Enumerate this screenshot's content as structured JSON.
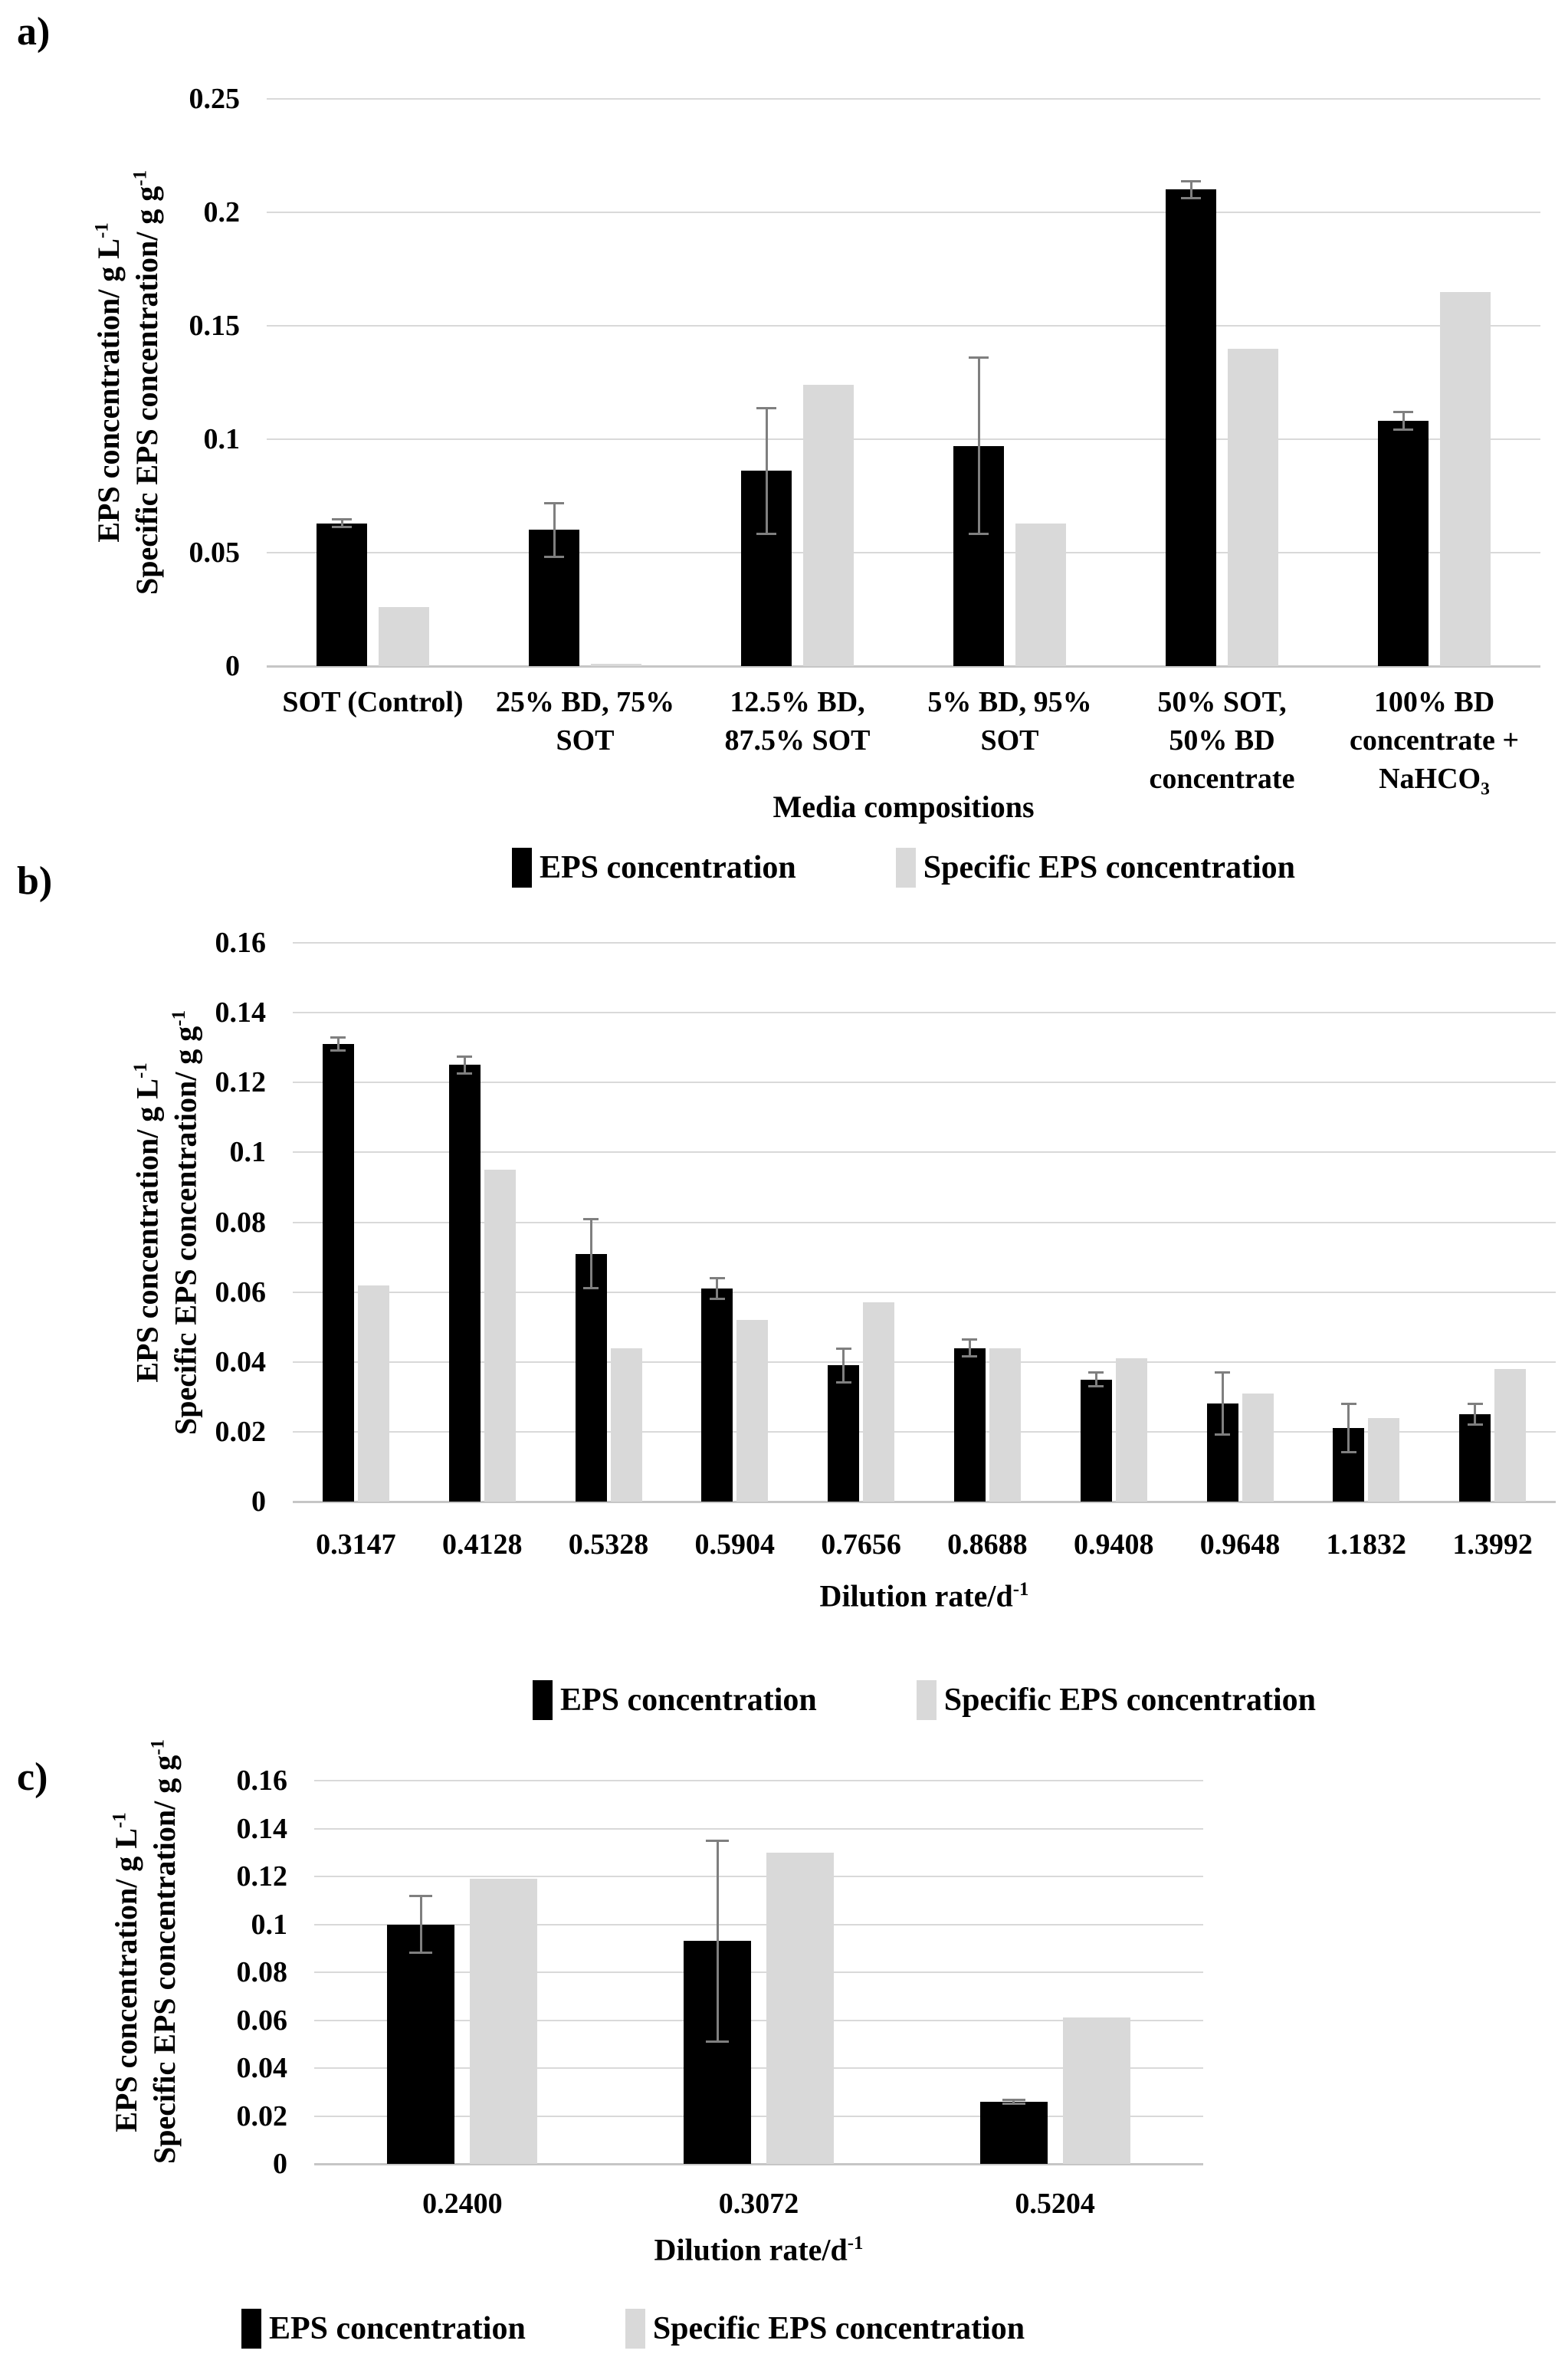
{
  "page_background": "#ffffff",
  "panel_labels": [
    "a)",
    "b)",
    "c)"
  ],
  "colors": {
    "eps_bar": "#000000",
    "specific_bar": "#d9d9d9",
    "gridline": "#d9d9d9",
    "axis_line": "#c6c6c6",
    "error_bar": "#7f7f7f",
    "text": "#000000"
  },
  "legend_items": [
    {
      "label": "EPS concentration",
      "color_key": "eps_bar"
    },
    {
      "label": "Specific EPS concentration",
      "color_key": "specific_bar"
    }
  ],
  "chart_data": [
    {
      "panel": "a",
      "type": "bar",
      "title": "",
      "xlabel": "Media compositions",
      "ylabel_lines": [
        "EPS concentration/ g L^-1",
        "Specific EPS concentration/ g g^-1"
      ],
      "ylim": [
        0,
        0.25
      ],
      "yticks": [
        {
          "value": 0.25,
          "label": "0.25"
        },
        {
          "value": 0.2,
          "label": "0.2"
        },
        {
          "value": 0.15,
          "label": "0.15"
        },
        {
          "value": 0.1,
          "label": "0.1"
        },
        {
          "value": 0.05,
          "label": "0.05"
        },
        {
          "value": 0,
          "label": "0"
        }
      ],
      "grid": true,
      "legend_position": "bottom-center",
      "categories": [
        "SOT (Control)",
        "25% BD, 75% SOT",
        "12.5% BD, 87.5% SOT",
        "5% BD, 95% SOT",
        "50% SOT, 50% BD concentrate",
        "100% BD concentrate + NaHCO_3"
      ],
      "category_lines": [
        [
          "SOT (Control)"
        ],
        [
          "25% BD, 75%",
          "SOT"
        ],
        [
          "12.5% BD,",
          "87.5% SOT"
        ],
        [
          "5% BD, 95%",
          "SOT"
        ],
        [
          "50% SOT,",
          "50% BD",
          "concentrate"
        ],
        [
          "100% BD",
          "concentrate +",
          "NaHCO_3"
        ]
      ],
      "series": [
        {
          "name": "EPS concentration",
          "values": [
            0.063,
            0.06,
            0.086,
            0.097,
            0.21,
            0.108
          ],
          "errors": [
            0.002,
            0.012,
            0.028,
            0.039,
            0.004,
            0.004
          ]
        },
        {
          "name": "Specific EPS concentration",
          "values": [
            0.026,
            0.001,
            0.124,
            0.063,
            0.14,
            0.165
          ],
          "errors": [
            0,
            0,
            0,
            0,
            0,
            0
          ]
        }
      ]
    },
    {
      "panel": "b",
      "type": "bar",
      "title": "",
      "xlabel": "Dilution rate/d^-1",
      "ylabel_lines": [
        "EPS concentration/ g L^-1",
        "Specific EPS concentration/ g g^-1"
      ],
      "ylim": [
        0,
        0.16
      ],
      "yticks": [
        {
          "value": 0.16,
          "label": "0.16"
        },
        {
          "value": 0.14,
          "label": "0.14"
        },
        {
          "value": 0.12,
          "label": "0.12"
        },
        {
          "value": 0.1,
          "label": "0.1"
        },
        {
          "value": 0.08,
          "label": "0.08"
        },
        {
          "value": 0.06,
          "label": "0.06"
        },
        {
          "value": 0.04,
          "label": "0.04"
        },
        {
          "value": 0.02,
          "label": "0.02"
        },
        {
          "value": 0,
          "label": "0"
        }
      ],
      "grid": true,
      "legend_position": "bottom-center",
      "categories": [
        "0.3147",
        "0.4128",
        "0.5328",
        "0.5904",
        "0.7656",
        "0.8688",
        "0.9408",
        "0.9648",
        "1.1832",
        "1.3992"
      ],
      "category_lines": [
        [
          "0.3147"
        ],
        [
          "0.4128"
        ],
        [
          "0.5328"
        ],
        [
          "0.5904"
        ],
        [
          "0.7656"
        ],
        [
          "0.8688"
        ],
        [
          "0.9408"
        ],
        [
          "0.9648"
        ],
        [
          "1.1832"
        ],
        [
          "1.3992"
        ]
      ],
      "series": [
        {
          "name": "EPS concentration",
          "values": [
            0.131,
            0.125,
            0.071,
            0.061,
            0.039,
            0.044,
            0.035,
            0.028,
            0.021,
            0.025
          ],
          "errors": [
            0.002,
            0.0025,
            0.01,
            0.003,
            0.005,
            0.0025,
            0.002,
            0.009,
            0.007,
            0.003
          ]
        },
        {
          "name": "Specific EPS concentration",
          "values": [
            0.062,
            0.095,
            0.044,
            0.052,
            0.057,
            0.044,
            0.041,
            0.031,
            0.024,
            0.038
          ],
          "errors": [
            0,
            0,
            0,
            0,
            0,
            0,
            0,
            0,
            0,
            0
          ]
        }
      ]
    },
    {
      "panel": "c",
      "type": "bar",
      "title": "",
      "xlabel": "Dilution rate/d^-1",
      "ylabel_lines": [
        "EPS concentration/ g L^-1",
        "Specific EPS concentration/ g g^-1"
      ],
      "ylim": [
        0,
        0.16
      ],
      "yticks": [
        {
          "value": 0.16,
          "label": "0.16"
        },
        {
          "value": 0.14,
          "label": "0.14"
        },
        {
          "value": 0.12,
          "label": "0.12"
        },
        {
          "value": 0.1,
          "label": "0.1"
        },
        {
          "value": 0.08,
          "label": "0.08"
        },
        {
          "value": 0.06,
          "label": "0.06"
        },
        {
          "value": 0.04,
          "label": "0.04"
        },
        {
          "value": 0.02,
          "label": "0.02"
        },
        {
          "value": 0,
          "label": "0"
        }
      ],
      "grid": true,
      "legend_position": "bottom-left",
      "categories": [
        "0.2400",
        "0.3072",
        "0.5204"
      ],
      "category_lines": [
        [
          "0.2400"
        ],
        [
          "0.3072"
        ],
        [
          "0.5204"
        ]
      ],
      "series": [
        {
          "name": "EPS concentration",
          "values": [
            0.1,
            0.093,
            0.026
          ],
          "errors": [
            0.012,
            0.042,
            0.001
          ]
        },
        {
          "name": "Specific EPS concentration",
          "values": [
            0.119,
            0.13,
            0.061
          ],
          "errors": [
            0,
            0,
            0
          ]
        }
      ]
    }
  ]
}
